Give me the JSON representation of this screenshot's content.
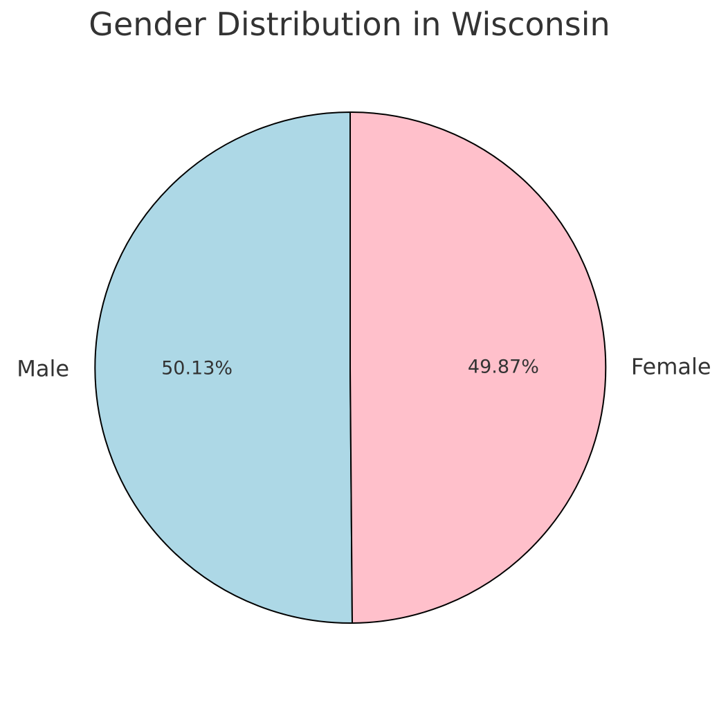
{
  "chart_data": {
    "type": "pie",
    "title": "Gender Distribution in Wisconsin",
    "labels": [
      "Male",
      "Female"
    ],
    "values": [
      50.13,
      49.87
    ],
    "pct_labels": [
      "50.13%",
      "49.87%"
    ],
    "colors": [
      "#ADD8E6",
      "#FFC0CB"
    ],
    "edge_color": "#000000",
    "text_color": "#333333",
    "background_color": "#FFFFFF",
    "start_angle": 90,
    "counterclockwise": true,
    "label_distance": 1.1,
    "pct_distance": 0.6,
    "legend": "none",
    "grid": false
  }
}
